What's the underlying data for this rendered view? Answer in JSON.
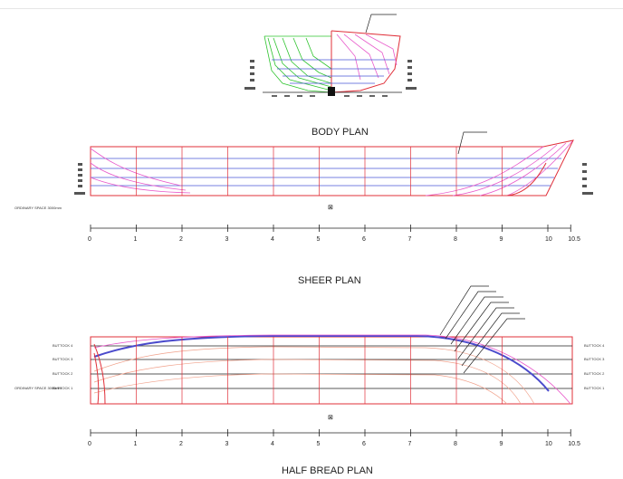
{
  "titles": {
    "body_plan": "BODY PLAN",
    "sheer_plan": "SHEER PLAN",
    "half_breadth_plan": "HALF BREAD PLAN"
  },
  "labels": {
    "ordinary_spacing": "ORDINARY SPACE 3000mm",
    "buttock_labels": [
      "BUTTOCK 4",
      "BUTTOCK 3",
      "BUTTOCK 2",
      "BUTTOCK 1"
    ],
    "station_marker": "⊠"
  },
  "scale_ticks": [
    "0",
    "1",
    "2",
    "3",
    "4",
    "5",
    "6",
    "7",
    "8",
    "9",
    "10",
    "10.5"
  ],
  "colors": {
    "sections": "#e0303a",
    "waterlines": "#4a58d6",
    "buttocks": "#e85acb",
    "body_aft": "#2fc42f",
    "sheer_highlight": "#4a4acc"
  }
}
